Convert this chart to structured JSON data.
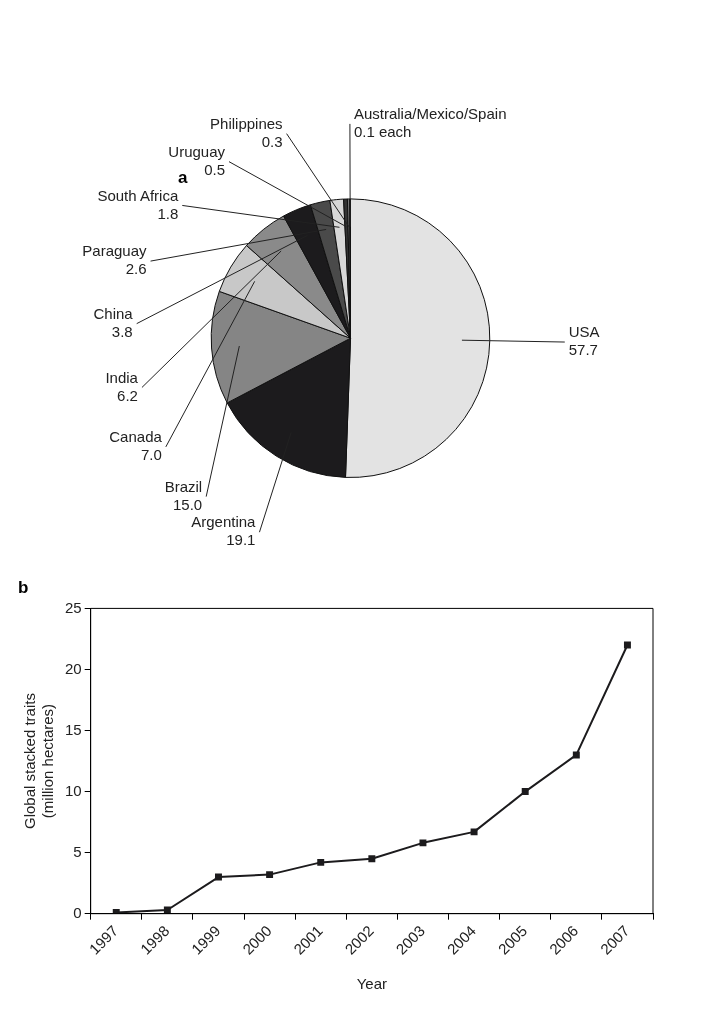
{
  "chart_data": [
    {
      "type": "pie",
      "title": "a",
      "categories": [
        "USA",
        "Argentina",
        "Brazil",
        "Canada",
        "India",
        "China",
        "Paraguay",
        "South Africa",
        "Uruguay",
        "Philippines",
        "Australia/Mexico/Spain"
      ],
      "values": [
        57.7,
        19.1,
        15.0,
        7.0,
        6.2,
        3.8,
        2.6,
        1.8,
        0.5,
        0.3,
        0.1
      ],
      "value_labels": [
        "57.7",
        "19.1",
        "15.0",
        "7.0",
        "6.2",
        "3.8",
        "2.6",
        "1.8",
        "0.5",
        "0.3",
        "0.1 each"
      ],
      "colors": [
        "#e3e3e3",
        "#1c1b1d",
        "#858585",
        "#c8c8c8",
        "#8a8a8a",
        "#1c1b1d",
        "#4a4a4a",
        "#d8d8d8",
        "#333333",
        "#777777",
        "#222222"
      ],
      "legend": false
    },
    {
      "type": "line",
      "title": "b",
      "xlabel": "Year",
      "ylabel": "Global stacked traits\n(million hectares)",
      "categories": [
        "1997",
        "1998",
        "1999",
        "2000",
        "2001",
        "2002",
        "2003",
        "2004",
        "2005",
        "2006",
        "2007"
      ],
      "series": [
        {
          "color": "#1c1b1d",
          "values": [
            0.1,
            0.3,
            3.0,
            3.2,
            4.2,
            4.5,
            5.8,
            6.7,
            10.0,
            13.0,
            22.0
          ]
        }
      ],
      "ylim": [
        0,
        25
      ],
      "yticks": [
        0,
        5,
        10,
        15,
        20,
        25
      ],
      "grid": false,
      "marker": "square",
      "legend": false
    }
  ]
}
